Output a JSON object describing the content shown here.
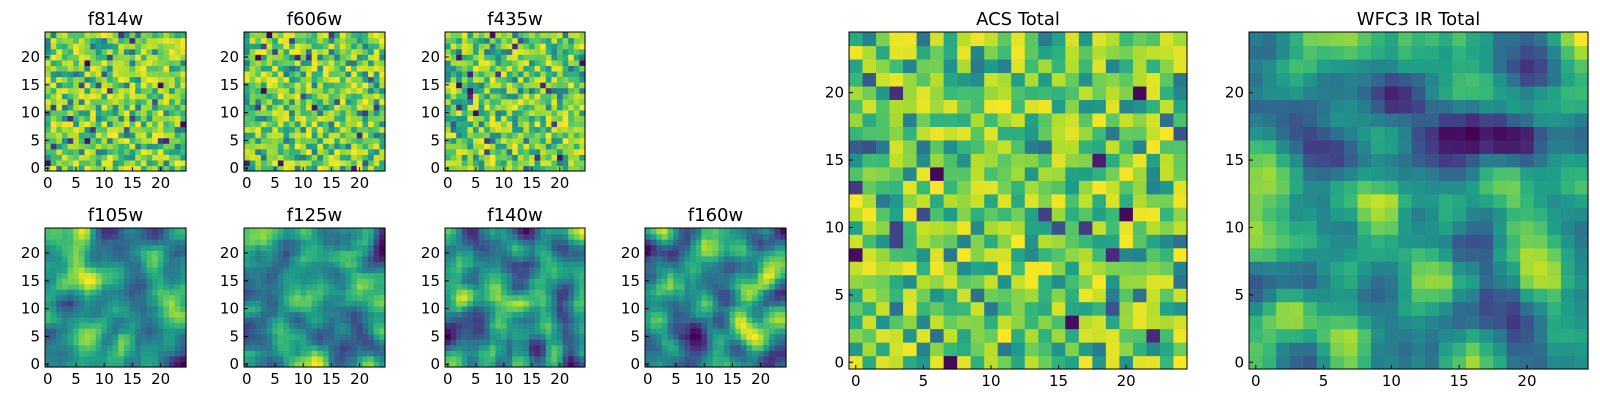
{
  "chart_data": [
    {
      "type": "heatmap",
      "title": "f435w",
      "grid": [
        25,
        25
      ],
      "x_ticks": [
        "0",
        "5",
        "10",
        "15",
        "20"
      ],
      "y_ticks": [
        "0",
        "5",
        "10",
        "15",
        "20"
      ],
      "colormap": "viridis",
      "texture": "pixel-noise",
      "seed": 11
    },
    {
      "type": "heatmap",
      "title": "f606w",
      "grid": [
        25,
        25
      ],
      "x_ticks": [
        "0",
        "5",
        "10",
        "15",
        "20"
      ],
      "y_ticks": [
        "0",
        "5",
        "10",
        "15",
        "20"
      ],
      "colormap": "viridis",
      "texture": "pixel-noise",
      "seed": 23
    },
    {
      "type": "heatmap",
      "title": "f814w",
      "grid": [
        25,
        25
      ],
      "x_ticks": [
        "0",
        "5",
        "10",
        "15",
        "20"
      ],
      "y_ticks": [
        "0",
        "5",
        "10",
        "15",
        "20"
      ],
      "colormap": "viridis",
      "texture": "pixel-noise",
      "seed": 37
    },
    {
      "type": "heatmap",
      "title": "f105w",
      "grid": [
        25,
        25
      ],
      "x_ticks": [
        "0",
        "5",
        "10",
        "15",
        "20"
      ],
      "y_ticks": [
        "0",
        "5",
        "10",
        "15",
        "20"
      ],
      "colormap": "viridis",
      "texture": "smooth-blobs",
      "seed": 41
    },
    {
      "type": "heatmap",
      "title": "f125w",
      "grid": [
        25,
        25
      ],
      "x_ticks": [
        "0",
        "5",
        "10",
        "15",
        "20"
      ],
      "y_ticks": [
        "0",
        "5",
        "10",
        "15",
        "20"
      ],
      "colormap": "viridis",
      "texture": "smooth-blobs",
      "seed": 53
    },
    {
      "type": "heatmap",
      "title": "f140w",
      "grid": [
        25,
        25
      ],
      "x_ticks": [
        "0",
        "5",
        "10",
        "15",
        "20"
      ],
      "y_ticks": [
        "0",
        "5",
        "10",
        "15",
        "20"
      ],
      "colormap": "viridis",
      "texture": "smooth-blobs",
      "seed": 67
    },
    {
      "type": "heatmap",
      "title": "f160w",
      "grid": [
        25,
        25
      ],
      "x_ticks": [
        "0",
        "5",
        "10",
        "15",
        "20"
      ],
      "y_ticks": [
        "0",
        "5",
        "10",
        "15",
        "20"
      ],
      "colormap": "viridis",
      "texture": "smooth-blobs",
      "seed": 79
    },
    {
      "type": "heatmap",
      "title": "ACS Total",
      "grid": [
        25,
        25
      ],
      "x_ticks": [
        "0",
        "5",
        "10",
        "15",
        "20"
      ],
      "y_ticks": [
        "0",
        "5",
        "10",
        "15",
        "20"
      ],
      "colormap": "viridis",
      "texture": "pixel-noise",
      "seed": 89
    },
    {
      "type": "heatmap",
      "title": "WFC3 IR Total",
      "grid": [
        25,
        25
      ],
      "x_ticks": [
        "0",
        "5",
        "10",
        "15",
        "20"
      ],
      "y_ticks": [
        "0",
        "5",
        "10",
        "15",
        "20"
      ],
      "colormap": "viridis",
      "texture": "smooth-blobs",
      "seed": 97
    }
  ]
}
